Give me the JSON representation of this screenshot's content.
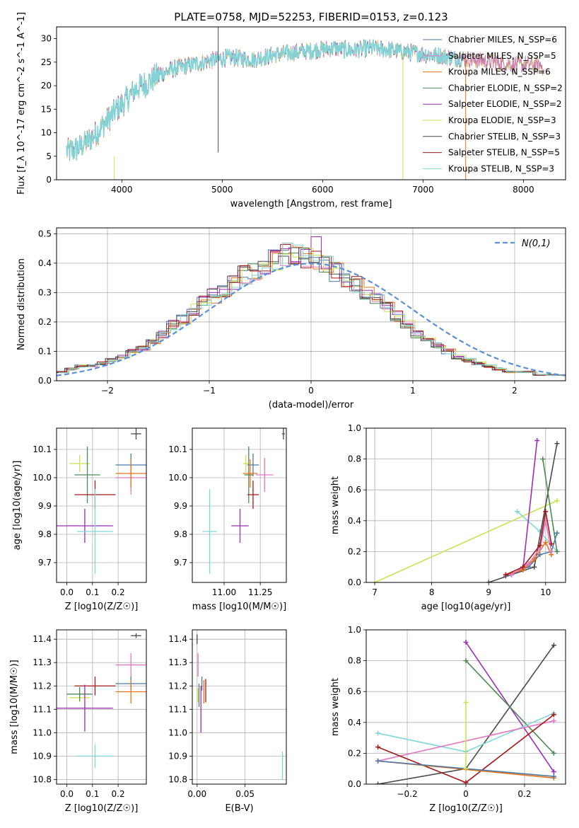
{
  "title": "PLATE=0758, MJD=52253, FIBERID=0153, z=0.123",
  "colors": {
    "chabrier_miles": "#4e79a7",
    "salpeter_miles": "#e377c2",
    "kroupa_miles": "#e8731a",
    "chabrier_elodie": "#4f8a56",
    "salpeter_elodie": "#9a2fb5",
    "kroupa_elodie": "#cde155",
    "chabrier_stelib": "#4a4a4a",
    "salpeter_stelib": "#a31a1a",
    "kroupa_stelib": "#7fd6d8",
    "normal_curve": "#5b8fd6",
    "grid": "#b0b0b0"
  },
  "chart_data": [
    {
      "id": "spectrum",
      "type": "line",
      "xlabel": "wavelength [Angstrom, rest frame]",
      "ylabel": "Flux [f_λ 10^-17 erg cm^-2 s^-1 A^-1]",
      "xlim": [
        3350,
        8420
      ],
      "ylim": [
        0,
        32.5
      ],
      "xticks": [
        4000,
        5000,
        6000,
        7000,
        8000
      ],
      "yticks": [
        0,
        5,
        10,
        15,
        20,
        25,
        30
      ],
      "grid": false,
      "legend_position": "top-right",
      "legend": [
        {
          "label": "Chabrier MILES, N_SSP=6",
          "color_key": "chabrier_miles"
        },
        {
          "label": "Salpeter MILES, N_SSP=5",
          "color_key": "salpeter_miles"
        },
        {
          "label": "Kroupa MILES, N_SSP=6",
          "color_key": "kroupa_miles"
        },
        {
          "label": "Chabrier ELODIE, N_SSP=2",
          "color_key": "chabrier_elodie"
        },
        {
          "label": "Salpeter ELODIE, N_SSP=2",
          "color_key": "salpeter_elodie"
        },
        {
          "label": "Kroupa ELODIE, N_SSP=3",
          "color_key": "kroupa_elodie"
        },
        {
          "label": "Chabrier STELIB, N_SSP=3",
          "color_key": "chabrier_stelib"
        },
        {
          "label": "Salpeter STELIB, N_SSP=5",
          "color_key": "salpeter_stelib"
        },
        {
          "label": "Kroupa STELIB, N_SSP=3",
          "color_key": "kroupa_stelib"
        }
      ],
      "spectrum_anchors": {
        "x": [
          3450,
          3550,
          3650,
          3750,
          3850,
          3950,
          4050,
          4150,
          4250,
          4350,
          4500,
          4700,
          4900,
          5100,
          5300,
          5500,
          5700,
          5900,
          6100,
          6300,
          6500,
          6700,
          6900,
          7100,
          7300,
          7500,
          7700,
          7900,
          8100,
          8200
        ],
        "y": [
          6,
          6.5,
          8,
          10,
          12.5,
          15,
          17,
          19.5,
          20.5,
          22,
          23.5,
          24.5,
          25.5,
          26,
          25.5,
          26.5,
          27,
          27.5,
          28,
          27.5,
          28,
          27.5,
          27,
          26.5,
          26,
          25.5,
          25,
          24.5,
          24.5,
          24
        ]
      },
      "vertical_spikes": [
        {
          "x": 4960,
          "y_low": 5.8,
          "y_high": 32.5,
          "color_key": "chabrier_stelib"
        },
        {
          "x": 3925,
          "y_low": 0,
          "y_high": 5,
          "color_key": "kroupa_elodie"
        },
        {
          "x": 6800,
          "y_low": 0,
          "y_high": 27,
          "color_key": "kroupa_elodie"
        },
        {
          "x": 7425,
          "y_low": 0,
          "y_high": 27,
          "color_key": "kroupa_miles"
        }
      ]
    },
    {
      "id": "residuals",
      "type": "bar",
      "xlabel": "(data-model)/error",
      "ylabel": "Normed distribution",
      "xlim": [
        -2.5,
        2.5
      ],
      "ylim": [
        0,
        0.52
      ],
      "xticks": [
        -2,
        -1,
        0,
        1,
        2
      ],
      "yticks": [
        0.0,
        0.1,
        0.2,
        0.3,
        0.4,
        0.5
      ],
      "grid": true,
      "legend_position": "top-right",
      "curve_label": "N(0,1)",
      "bin_width": 0.1,
      "histogram_envelope": [
        0.03,
        0.04,
        0.05,
        0.05,
        0.06,
        0.07,
        0.08,
        0.1,
        0.11,
        0.13,
        0.16,
        0.19,
        0.21,
        0.24,
        0.27,
        0.29,
        0.31,
        0.34,
        0.36,
        0.37,
        0.39,
        0.41,
        0.43,
        0.43,
        0.42,
        0.41,
        0.39,
        0.37,
        0.35,
        0.33,
        0.3,
        0.28,
        0.25,
        0.22,
        0.19,
        0.16,
        0.14,
        0.12,
        0.1,
        0.08,
        0.07,
        0.06,
        0.05,
        0.04,
        0.03,
        0.03,
        0.03,
        0.02,
        0.02,
        0.02
      ]
    },
    {
      "id": "age_vs_Z",
      "type": "scatter",
      "xlabel": "Z [log10(Z/Z☉)]",
      "ylabel": "age  [log10(age/yr)]",
      "xlim": [
        -0.04,
        0.31
      ],
      "ylim": [
        9.63,
        10.175
      ],
      "xticks": [
        0.0,
        0.1,
        0.2
      ],
      "yticks": [
        9.7,
        9.8,
        9.9,
        10.0,
        10.1
      ],
      "grid": true,
      "points": [
        {
          "x": 0.05,
          "y": 10.05,
          "xerr": 0.04,
          "yerr": 0.03,
          "color_key": "kroupa_elodie"
        },
        {
          "x": 0.08,
          "y": 10.01,
          "xerr": 0.05,
          "yerr": 0.1,
          "color_key": "chabrier_elodie"
        },
        {
          "x": 0.25,
          "y": 10.045,
          "xerr": 0.06,
          "yerr": 0.04,
          "color_key": "chabrier_miles"
        },
        {
          "x": 0.25,
          "y": 10.0,
          "xerr": 0.06,
          "yerr": 0.06,
          "color_key": "salpeter_miles"
        },
        {
          "x": 0.25,
          "y": 10.015,
          "xerr": 0.06,
          "yerr": 0.05,
          "color_key": "kroupa_miles"
        },
        {
          "x": 0.11,
          "y": 9.94,
          "xerr": 0.08,
          "yerr": 0.05,
          "color_key": "salpeter_stelib"
        },
        {
          "x": 0.07,
          "y": 9.83,
          "xerr": 0.11,
          "yerr": 0.06,
          "color_key": "salpeter_elodie"
        },
        {
          "x": 0.11,
          "y": 9.81,
          "xerr": 0.07,
          "yerr": 0.15,
          "color_key": "kroupa_stelib"
        },
        {
          "x": 0.27,
          "y": 10.155,
          "xerr": 0.02,
          "yerr": 0.02,
          "color_key": "chabrier_stelib"
        }
      ]
    },
    {
      "id": "age_vs_mass",
      "type": "scatter",
      "xlabel": "mass [log10(M/M☉)]",
      "ylabel": "",
      "xlim": [
        10.78,
        11.43
      ],
      "ylim": [
        9.63,
        10.175
      ],
      "xticks": [
        11.0,
        11.25
      ],
      "yticks": [
        9.7,
        9.8,
        9.9,
        10.0,
        10.1
      ],
      "grid": true,
      "points": [
        {
          "x": 11.15,
          "y": 10.05,
          "xerr": 0.02,
          "yerr": 0.03,
          "color_key": "kroupa_elodie"
        },
        {
          "x": 11.17,
          "y": 10.01,
          "xerr": 0.03,
          "yerr": 0.1,
          "color_key": "chabrier_elodie"
        },
        {
          "x": 11.2,
          "y": 10.045,
          "xerr": 0.04,
          "yerr": 0.04,
          "color_key": "chabrier_miles"
        },
        {
          "x": 11.28,
          "y": 10.01,
          "xerr": 0.06,
          "yerr": 0.06,
          "color_key": "salpeter_miles"
        },
        {
          "x": 11.18,
          "y": 10.015,
          "xerr": 0.05,
          "yerr": 0.05,
          "color_key": "kroupa_miles"
        },
        {
          "x": 11.2,
          "y": 9.94,
          "xerr": 0.04,
          "yerr": 0.05,
          "color_key": "salpeter_stelib"
        },
        {
          "x": 11.11,
          "y": 9.83,
          "xerr": 0.06,
          "yerr": 0.06,
          "color_key": "salpeter_elodie"
        },
        {
          "x": 10.9,
          "y": 9.81,
          "xerr": 0.05,
          "yerr": 0.15,
          "color_key": "kroupa_stelib"
        },
        {
          "x": 11.41,
          "y": 10.155,
          "xerr": 0.01,
          "yerr": 0.02,
          "color_key": "chabrier_stelib"
        }
      ]
    },
    {
      "id": "weight_vs_age",
      "type": "line",
      "xlabel": "age  [log10(age/yr)]",
      "ylabel": "mass weight",
      "xlim": [
        6.85,
        10.35
      ],
      "ylim": [
        0.0,
        1.0
      ],
      "xticks": [
        7,
        8,
        9,
        10
      ],
      "yticks": [
        0.0,
        0.2,
        0.4,
        0.6,
        0.8,
        1.0
      ],
      "grid": true,
      "series": [
        {
          "color_key": "kroupa_elodie",
          "x": [
            7.0,
            10.2
          ],
          "y": [
            0.0,
            0.53
          ]
        },
        {
          "color_key": "kroupa_stelib",
          "x": [
            9.5,
            9.9,
            10.2
          ],
          "y": [
            0.46,
            0.33,
            0.2
          ]
        },
        {
          "color_key": "salpeter_elodie",
          "x": [
            9.4,
            9.6,
            9.85
          ],
          "y": [
            0.05,
            0.08,
            0.92
          ]
        },
        {
          "color_key": "chabrier_stelib",
          "x": [
            9.0,
            9.8,
            10.2
          ],
          "y": [
            0.0,
            0.1,
            0.9
          ]
        },
        {
          "color_key": "chabrier_elodie",
          "x": [
            9.95,
            10.2
          ],
          "y": [
            0.8,
            0.2
          ]
        },
        {
          "color_key": "chabrier_miles",
          "x": [
            9.3,
            9.7,
            9.9,
            10.1,
            10.2
          ],
          "y": [
            0.04,
            0.1,
            0.18,
            0.2,
            0.32
          ]
        },
        {
          "color_key": "kroupa_miles",
          "x": [
            9.3,
            9.6,
            9.8,
            10.0,
            10.1
          ],
          "y": [
            0.05,
            0.08,
            0.15,
            0.26,
            0.18
          ]
        },
        {
          "color_key": "salpeter_miles",
          "x": [
            9.4,
            9.7,
            9.9,
            10.0,
            10.1
          ],
          "y": [
            0.05,
            0.12,
            0.22,
            0.4,
            0.2
          ]
        },
        {
          "color_key": "salpeter_stelib",
          "x": [
            9.3,
            9.6,
            9.9,
            10.0,
            10.1
          ],
          "y": [
            0.05,
            0.1,
            0.24,
            0.46,
            0.25
          ]
        }
      ]
    },
    {
      "id": "mass_vs_Z",
      "type": "scatter",
      "xlabel": "Z [log10(Z/Z☉)]",
      "ylabel": "mass [log10(M/M☉)]",
      "xlim": [
        -0.04,
        0.31
      ],
      "ylim": [
        10.78,
        11.44
      ],
      "xticks": [
        0.0,
        0.1,
        0.2
      ],
      "yticks": [
        10.8,
        10.9,
        11.0,
        11.1,
        11.2,
        11.3,
        11.4
      ],
      "grid": true,
      "points": [
        {
          "x": 0.05,
          "y": 11.15,
          "xerr": 0.04,
          "yerr": 0.02,
          "color_key": "kroupa_elodie"
        },
        {
          "x": 0.05,
          "y": 11.165,
          "xerr": 0.05,
          "yerr": 0.03,
          "color_key": "chabrier_elodie"
        },
        {
          "x": 0.25,
          "y": 11.21,
          "xerr": 0.06,
          "yerr": 0.03,
          "color_key": "chabrier_miles"
        },
        {
          "x": 0.25,
          "y": 11.29,
          "xerr": 0.06,
          "yerr": 0.05,
          "color_key": "salpeter_miles"
        },
        {
          "x": 0.25,
          "y": 11.175,
          "xerr": 0.06,
          "yerr": 0.05,
          "color_key": "kroupa_miles"
        },
        {
          "x": 0.11,
          "y": 11.2,
          "xerr": 0.08,
          "yerr": 0.04,
          "color_key": "salpeter_stelib"
        },
        {
          "x": 0.07,
          "y": 11.105,
          "xerr": 0.11,
          "yerr": 0.1,
          "color_key": "salpeter_elodie"
        },
        {
          "x": 0.11,
          "y": 10.9,
          "xerr": 0.07,
          "yerr": 0.05,
          "color_key": "kroupa_stelib"
        },
        {
          "x": 0.27,
          "y": 11.415,
          "xerr": 0.02,
          "yerr": 0.01,
          "color_key": "chabrier_stelib"
        }
      ]
    },
    {
      "id": "mass_vs_ebv",
      "type": "scatter",
      "xlabel": "E(B-V)",
      "ylabel": "",
      "xlim": [
        -0.005,
        0.093
      ],
      "ylim": [
        10.78,
        11.44
      ],
      "xticks": [
        0.0,
        0.05
      ],
      "yticks": [
        10.8,
        10.9,
        11.0,
        11.1,
        11.2,
        11.3,
        11.4
      ],
      "grid": true,
      "points": [
        {
          "x": 0.001,
          "y": 11.16,
          "xerr": 0,
          "yerr": 0.03,
          "color_key": "kroupa_elodie"
        },
        {
          "x": 0.002,
          "y": 11.16,
          "xerr": 0,
          "yerr": 0.05,
          "color_key": "chabrier_elodie"
        },
        {
          "x": 0.001,
          "y": 11.29,
          "xerr": 0,
          "yerr": 0.05,
          "color_key": "salpeter_miles"
        },
        {
          "x": 0.005,
          "y": 11.21,
          "xerr": 0,
          "yerr": 0.03,
          "color_key": "chabrier_miles"
        },
        {
          "x": 0.007,
          "y": 11.175,
          "xerr": 0,
          "yerr": 0.05,
          "color_key": "kroupa_miles"
        },
        {
          "x": 0.009,
          "y": 11.18,
          "xerr": 0,
          "yerr": 0.05,
          "color_key": "salpeter_stelib"
        },
        {
          "x": 0.004,
          "y": 11.1,
          "xerr": 0,
          "yerr": 0.1,
          "color_key": "salpeter_elodie"
        },
        {
          "x": 0.089,
          "y": 10.86,
          "xerr": 0,
          "yerr": 0.06,
          "color_key": "kroupa_stelib"
        },
        {
          "x": 0.0,
          "y": 11.4,
          "xerr": 0,
          "yerr": 0.02,
          "color_key": "chabrier_stelib"
        }
      ]
    },
    {
      "id": "weight_vs_Z",
      "type": "line",
      "xlabel": "Z [log10(Z/Z☉)]",
      "ylabel": "mass weight",
      "xlim": [
        -0.34,
        0.34
      ],
      "ylim": [
        0.0,
        1.0
      ],
      "xticks": [
        -0.2,
        0.0,
        0.2
      ],
      "yticks": [
        0.0,
        0.2,
        0.4,
        0.6,
        0.8,
        1.0
      ],
      "grid": true,
      "series": [
        {
          "color_key": "chabrier_stelib",
          "x": [
            -0.3,
            0.0,
            0.3
          ],
          "y": [
            0.0,
            0.1,
            0.9
          ]
        },
        {
          "color_key": "salpeter_elodie",
          "x": [
            0.0,
            0.3
          ],
          "y": [
            0.92,
            0.08
          ]
        },
        {
          "color_key": "chabrier_elodie",
          "x": [
            0.0,
            0.3
          ],
          "y": [
            0.8,
            0.2
          ]
        },
        {
          "color_key": "kroupa_stelib",
          "x": [
            -0.3,
            0.0,
            0.3
          ],
          "y": [
            0.33,
            0.21,
            0.46
          ]
        },
        {
          "color_key": "salpeter_miles",
          "x": [
            -0.3,
            0.3
          ],
          "y": [
            0.15,
            0.41
          ]
        },
        {
          "color_key": "salpeter_stelib",
          "x": [
            -0.3,
            0.0,
            0.3
          ],
          "y": [
            0.24,
            0.01,
            0.45
          ]
        },
        {
          "color_key": "kroupa_miles",
          "x": [
            -0.3,
            0.3
          ],
          "y": [
            0.15,
            0.04
          ]
        },
        {
          "color_key": "chabrier_miles",
          "x": [
            -0.3,
            0.3
          ],
          "y": [
            0.15,
            0.05
          ]
        },
        {
          "color_key": "kroupa_elodie",
          "x": [
            0.0,
            0.0
          ],
          "y": [
            0.1,
            0.53
          ]
        }
      ]
    }
  ]
}
